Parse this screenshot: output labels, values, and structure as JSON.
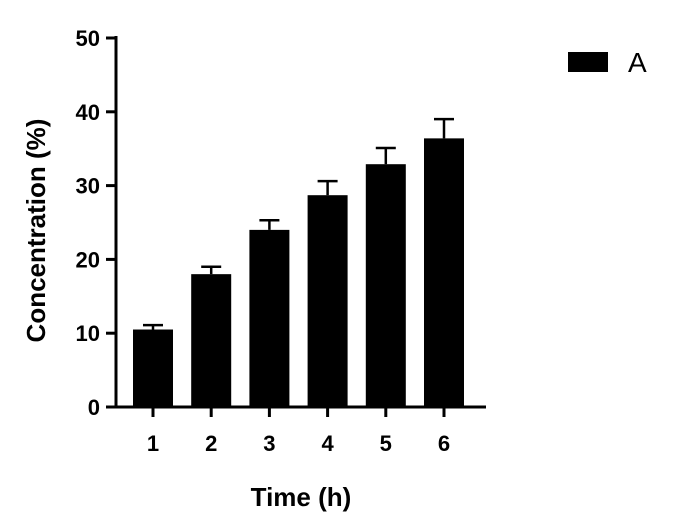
{
  "chart_data": {
    "type": "bar",
    "categories": [
      "1",
      "2",
      "3",
      "4",
      "5",
      "6"
    ],
    "series": [
      {
        "name": "A",
        "values": [
          10.5,
          18.0,
          24.0,
          28.7,
          32.9,
          36.4
        ],
        "errors": [
          0.6,
          1.0,
          1.3,
          1.9,
          2.2,
          2.6
        ],
        "color": "#000000"
      }
    ],
    "xlabel": "Time (h)",
    "ylabel": "Concentration (%)",
    "ylim": [
      0,
      50
    ],
    "yticks": [
      0,
      10,
      20,
      30,
      40,
      50
    ],
    "grid": false,
    "legend": "top-right",
    "error_bars": "upper-only"
  }
}
